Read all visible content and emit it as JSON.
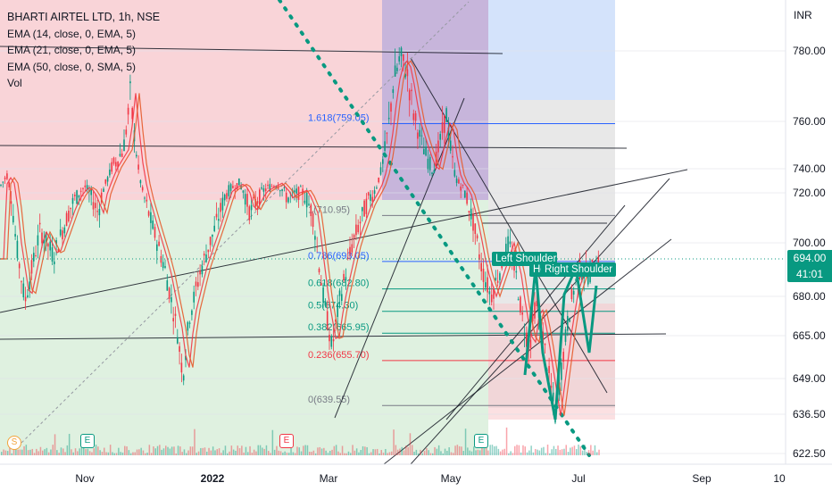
{
  "legend": {
    "title": "BHARTI AIRTEL LTD, 1h, NSE",
    "lines": [
      "EMA (14, close, 0, EMA, 5)",
      "EMA (21, close, 0, EMA, 5)",
      "EMA (50, close, 0, SMA, 5)",
      "Vol"
    ]
  },
  "currency": "INR",
  "last_price": "694.00",
  "countdown": "41:01",
  "annotations": {
    "left_shoulder": "Left Shoulder",
    "head": "He",
    "right_shoulder": "Right Shoulder"
  },
  "event_badges": [
    "S",
    "E",
    "E",
    "E"
  ],
  "colors": {
    "up": "#089981",
    "down": "#f23645",
    "ema14": "#f23645",
    "ema21": "#e65a2a",
    "zone_red": "#f7c6cb",
    "zone_green": "#d4ecd5",
    "zone_purple": "#b9a2d2",
    "zone_blue": "#cfe0fb",
    "zone_gray": "#e6e6e6",
    "dots": "#089981"
  },
  "chart_data": {
    "type": "candlestick",
    "y_axis_ticks": [
      780.0,
      760.0,
      740.0,
      720.0,
      700.0,
      680.0,
      665.0,
      649.0,
      636.5,
      622.5
    ],
    "y_axis_tick_labels": [
      "780.00",
      "760.00",
      "740.00",
      "720.00",
      "700.00",
      "680.00",
      "665.00",
      "649.00",
      "636.50",
      "622.50"
    ],
    "x_axis_ticks": [
      "Nov",
      "2022",
      "Mar",
      "May",
      "Jul",
      "Sep",
      "10"
    ],
    "fib_levels": [
      {
        "label": "1.618(759.05)",
        "value": 759.05
      },
      {
        "label": "1(710.95)",
        "value": 710.95
      },
      {
        "label": "0.786(693.05)",
        "value": 693.05
      },
      {
        "label": "0.618(682.80)",
        "value": 682.8
      },
      {
        "label": "0.5(674.30)",
        "value": 674.3
      },
      {
        "label": "0.382(665.95)",
        "value": 665.95
      },
      {
        "label": "0.236(655.70)",
        "value": 655.7
      },
      {
        "label": "0(639.55)",
        "value": 639.55
      }
    ],
    "last_price": 694.0,
    "price_path": [
      [
        0,
        725
      ],
      [
        8,
        735
      ],
      [
        18,
        700
      ],
      [
        28,
        678
      ],
      [
        45,
        705
      ],
      [
        60,
        695
      ],
      [
        80,
        715
      ],
      [
        95,
        725
      ],
      [
        110,
        712
      ],
      [
        125,
        740
      ],
      [
        138,
        748
      ],
      [
        146,
        768
      ],
      [
        152,
        750
      ],
      [
        160,
        720
      ],
      [
        172,
        705
      ],
      [
        185,
        690
      ],
      [
        198,
        668
      ],
      [
        205,
        650
      ],
      [
        212,
        672
      ],
      [
        225,
        690
      ],
      [
        240,
        705
      ],
      [
        255,
        722
      ],
      [
        268,
        728
      ],
      [
        280,
        712
      ],
      [
        295,
        722
      ],
      [
        310,
        728
      ],
      [
        322,
        718
      ],
      [
        338,
        722
      ],
      [
        350,
        712
      ],
      [
        362,
        680
      ],
      [
        372,
        660
      ],
      [
        380,
        678
      ],
      [
        395,
        700
      ],
      [
        410,
        715
      ],
      [
        420,
        722
      ],
      [
        430,
        745
      ],
      [
        440,
        770
      ],
      [
        448,
        778
      ],
      [
        455,
        775
      ],
      [
        465,
        760
      ],
      [
        475,
        748
      ],
      [
        485,
        738
      ],
      [
        495,
        755
      ],
      [
        500,
        762
      ],
      [
        505,
        748
      ],
      [
        512,
        730
      ],
      [
        520,
        722
      ],
      [
        530,
        708
      ],
      [
        540,
        690
      ],
      [
        550,
        680
      ],
      [
        560,
        690
      ],
      [
        570,
        700
      ],
      [
        578,
        688
      ],
      [
        585,
        672
      ],
      [
        593,
        660
      ],
      [
        600,
        678
      ],
      [
        608,
        665
      ],
      [
        615,
        650
      ],
      [
        622,
        636
      ],
      [
        628,
        650
      ],
      [
        635,
        668
      ],
      [
        642,
        682
      ],
      [
        650,
        690
      ],
      [
        660,
        688
      ],
      [
        670,
        694
      ]
    ]
  }
}
